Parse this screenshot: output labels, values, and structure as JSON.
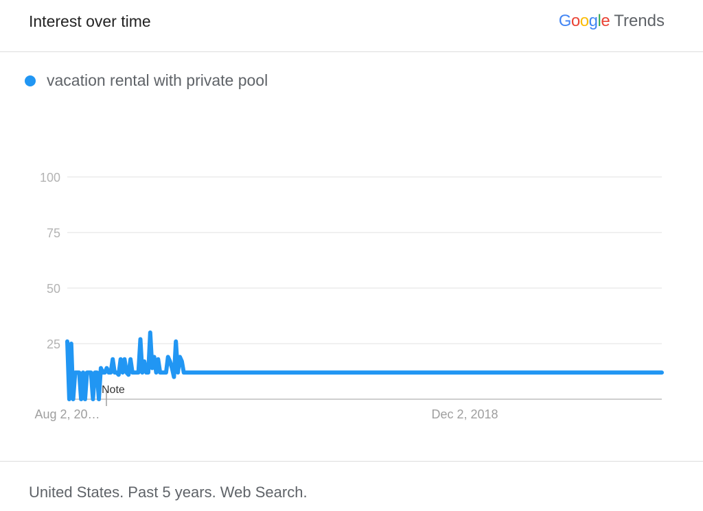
{
  "header": {
    "title": "Interest over time",
    "brand": {
      "letters": [
        {
          "char": "G",
          "color": "#4285F4"
        },
        {
          "char": "o",
          "color": "#EA4335"
        },
        {
          "char": "o",
          "color": "#FBBC05"
        },
        {
          "char": "g",
          "color": "#4285F4"
        },
        {
          "char": "l",
          "color": "#34A853"
        },
        {
          "char": "e",
          "color": "#EA4335"
        }
      ],
      "suffix": "Trends"
    }
  },
  "legend": {
    "label": "vacation rental with private pool",
    "color": "#2196F3"
  },
  "footer": {
    "text": "United States. Past 5 years. Web Search."
  },
  "chart_data": {
    "type": "line",
    "series": [
      {
        "name": "vacation rental with private pool",
        "color": "#2196F3",
        "values": [
          26,
          0,
          25,
          0,
          12,
          12,
          12,
          0,
          12,
          0,
          12,
          12,
          12,
          0,
          12,
          12,
          0,
          14,
          12,
          12,
          14,
          12,
          12,
          18,
          12,
          12,
          11,
          18,
          12,
          18,
          12,
          11,
          18,
          12,
          12,
          12,
          12,
          27,
          12,
          17,
          12,
          12,
          30,
          14,
          19,
          12,
          18,
          12,
          12,
          12,
          12,
          19,
          17,
          14,
          10,
          26,
          12,
          19,
          17,
          12,
          12,
          12,
          12,
          12,
          12,
          12,
          12,
          12,
          12,
          12,
          12,
          12,
          12,
          12,
          12,
          12,
          12,
          12,
          12,
          12,
          12,
          12,
          12,
          12,
          12,
          12,
          12,
          12,
          12,
          12,
          12,
          12,
          12,
          12,
          12,
          12,
          12,
          12,
          12,
          12,
          12,
          12,
          12,
          12,
          12,
          12,
          12,
          12,
          12,
          12,
          12,
          12,
          12,
          12,
          12,
          12,
          12,
          12,
          12,
          12,
          12,
          12,
          12,
          12,
          12,
          12,
          12,
          12,
          12,
          12,
          12,
          12,
          12,
          12,
          12,
          12,
          12,
          12,
          12,
          12,
          12,
          12,
          12,
          12,
          12,
          12,
          12,
          12,
          12,
          12,
          12,
          12,
          12,
          12,
          12,
          12,
          12,
          12,
          12,
          12,
          12,
          12,
          12,
          12,
          12,
          12,
          12,
          12,
          12,
          12,
          12,
          12,
          12,
          12,
          12,
          12,
          12,
          12,
          12,
          12,
          12,
          12,
          12,
          12,
          12,
          12,
          12,
          12,
          12,
          12,
          12,
          12,
          12,
          12,
          12,
          12,
          12,
          12,
          12,
          12,
          12,
          12,
          12,
          12,
          12,
          12,
          12,
          12,
          12,
          12,
          12,
          12,
          12,
          12,
          12,
          12,
          12,
          12,
          12,
          12,
          12,
          12,
          12,
          12,
          12,
          12,
          12,
          12,
          12,
          12,
          12,
          12,
          12,
          12,
          12,
          12,
          12,
          12,
          12,
          12,
          12,
          12,
          12,
          12,
          12,
          12,
          12,
          12,
          12,
          12,
          12,
          12,
          12,
          12,
          12,
          12,
          12,
          12,
          12,
          12,
          12,
          12,
          12,
          12,
          12,
          12,
          12,
          12,
          12,
          12,
          12,
          12,
          12,
          12,
          12,
          12,
          12,
          12,
          12,
          12,
          12,
          12,
          12,
          12,
          12,
          12,
          12,
          12,
          12,
          12,
          12,
          12,
          12,
          12,
          12,
          12,
          12,
          12,
          12,
          12,
          12,
          12
        ]
      }
    ],
    "x_ticks": [
      "Aug 2, 20…",
      "Dec 2, 2018"
    ],
    "ylim": [
      0,
      100
    ],
    "y_ticks": [
      100,
      75,
      50,
      25
    ],
    "annotation": "Note",
    "grid": true
  }
}
